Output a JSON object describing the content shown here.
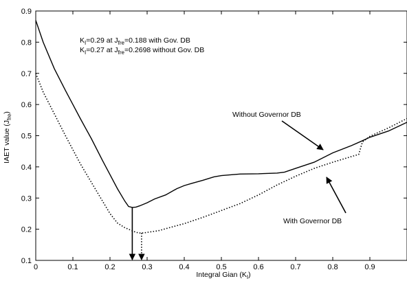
{
  "chart_data": {
    "type": "line",
    "xlabel": {
      "main": "Integral Gian (K",
      "sub": "I",
      "tail": ")"
    },
    "ylabel": {
      "main": "IAET value (J",
      "sub": "fre",
      "tail": ")"
    },
    "xlim": [
      0,
      1
    ],
    "ylim": [
      0.1,
      0.9
    ],
    "xticks": [
      0,
      0.1,
      0.2,
      0.3,
      0.4,
      0.5,
      0.6,
      0.7,
      0.8,
      0.9
    ],
    "yticks": [
      0.1,
      0.2,
      0.3,
      0.4,
      0.5,
      0.6,
      0.7,
      0.8,
      0.9
    ],
    "series": [
      {
        "name": "Without Governor DB",
        "style": "solid",
        "x": [
          0,
          0.02,
          0.05,
          0.08,
          0.1,
          0.12,
          0.15,
          0.18,
          0.2,
          0.22,
          0.24,
          0.25,
          0.26,
          0.27,
          0.28,
          0.3,
          0.32,
          0.35,
          0.38,
          0.4,
          0.42,
          0.45,
          0.48,
          0.5,
          0.55,
          0.6,
          0.65,
          0.67,
          0.7,
          0.75,
          0.8,
          0.85,
          0.88,
          0.9,
          0.95,
          1.0
        ],
        "y": [
          0.87,
          0.8,
          0.715,
          0.645,
          0.6,
          0.555,
          0.49,
          0.42,
          0.375,
          0.33,
          0.29,
          0.273,
          0.27,
          0.271,
          0.275,
          0.285,
          0.297,
          0.31,
          0.33,
          0.34,
          0.347,
          0.357,
          0.368,
          0.372,
          0.377,
          0.378,
          0.38,
          0.383,
          0.395,
          0.415,
          0.445,
          0.468,
          0.484,
          0.495,
          0.515,
          0.543
        ]
      },
      {
        "name": "With Governor DB",
        "style": "dotted",
        "x": [
          0,
          0.02,
          0.05,
          0.08,
          0.1,
          0.12,
          0.15,
          0.18,
          0.2,
          0.22,
          0.24,
          0.26,
          0.27,
          0.28,
          0.29,
          0.3,
          0.33,
          0.36,
          0.4,
          0.45,
          0.5,
          0.55,
          0.6,
          0.65,
          0.7,
          0.75,
          0.8,
          0.87,
          0.88,
          0.9,
          0.95,
          1.0
        ],
        "y": [
          0.7,
          0.64,
          0.57,
          0.5,
          0.455,
          0.41,
          0.35,
          0.29,
          0.25,
          0.22,
          0.205,
          0.195,
          0.19,
          0.188,
          0.188,
          0.19,
          0.195,
          0.205,
          0.218,
          0.238,
          0.26,
          0.282,
          0.31,
          0.342,
          0.37,
          0.395,
          0.415,
          0.44,
          0.48,
          0.498,
          0.525,
          0.555
        ]
      }
    ],
    "annotations": [
      {
        "parts": [
          "K",
          "I",
          "=0.29 at J",
          "fre",
          "=0.188 with Gov. DB"
        ]
      },
      {
        "parts": [
          "K",
          "I",
          "=0.27 at J",
          "fre",
          "=0.2698 without Gov. DB"
        ]
      },
      {
        "label": "Without Governor DB",
        "arrow_to": [
          0.76,
          0.416
        ]
      },
      {
        "label": "With Governor DB",
        "arrow_to": [
          0.77,
          0.37
        ]
      }
    ],
    "markers": [
      {
        "x": 0.26,
        "from_y": 0.27,
        "style": "solid"
      },
      {
        "x": 0.285,
        "from_y": 0.188,
        "style": "dotted"
      }
    ],
    "grid": false
  }
}
